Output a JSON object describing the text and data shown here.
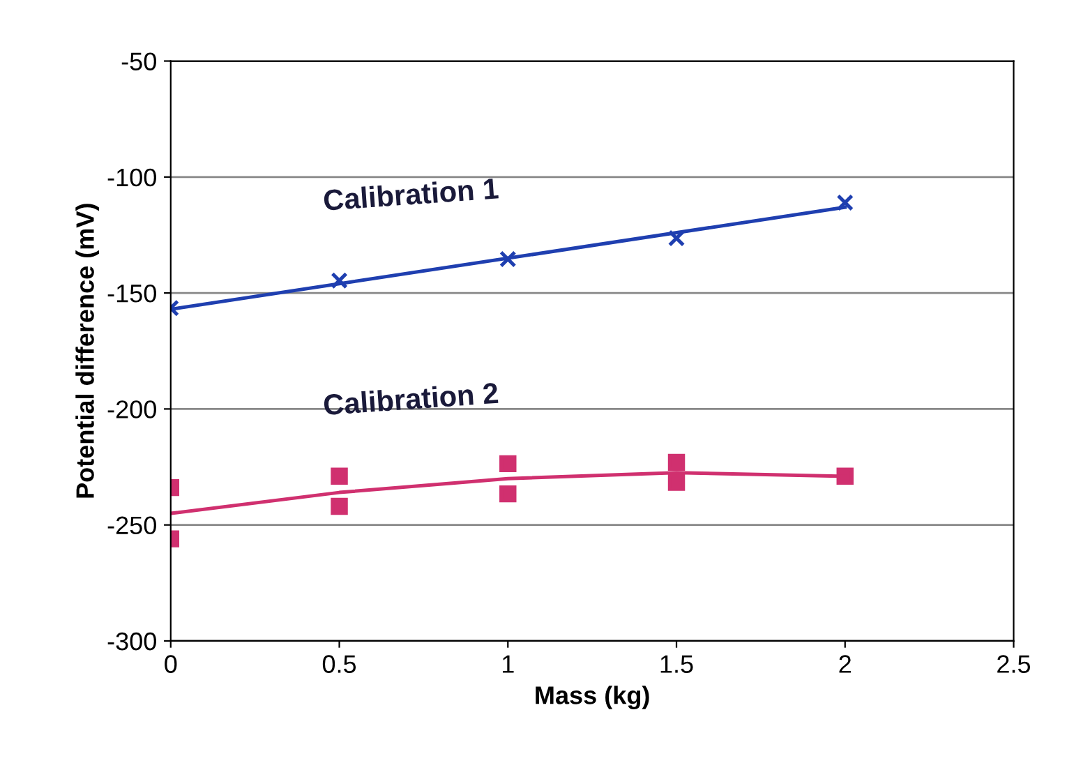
{
  "chart_data": {
    "type": "scatter",
    "xlabel": "Mass (kg)",
    "ylabel": "Potential difference (mV)",
    "xlim": [
      0,
      2.5
    ],
    "xticks": [
      0,
      0.5,
      1,
      1.5,
      2,
      2.5
    ],
    "ylim": [
      -300,
      -50
    ],
    "yticks": [
      -300,
      -250,
      -200,
      -150,
      -100,
      -50
    ],
    "grid": "y",
    "legend": false,
    "series": [
      {
        "name": "Calibration 1",
        "marker": "cross",
        "color": "#1f3fb0",
        "x": [
          0,
          0.5,
          1,
          1.5,
          2
        ],
        "values": [
          -156.5,
          -144.6,
          -135.4,
          -126.4,
          -111
        ]
      },
      {
        "type": "line",
        "marker": "none",
        "color": "#1f3fb0",
        "x": [
          0,
          2
        ],
        "values": [
          -157,
          -113
        ]
      },
      {
        "name": "Calibration 2",
        "marker": "square",
        "color": "#d0306f",
        "x": [
          0,
          0,
          0.5,
          0.5,
          1,
          1,
          1.5,
          1.5,
          2
        ],
        "values": [
          -233.9,
          -256,
          -229,
          -242,
          -223.6,
          -236.6,
          -223,
          -231.6,
          -229
        ]
      },
      {
        "type": "line",
        "marker": "none",
        "color": "#d0306f",
        "x": [
          0,
          0.5,
          1,
          1.5,
          2
        ],
        "values": [
          -245,
          -236,
          -230,
          -227.5,
          -229
        ]
      }
    ]
  }
}
